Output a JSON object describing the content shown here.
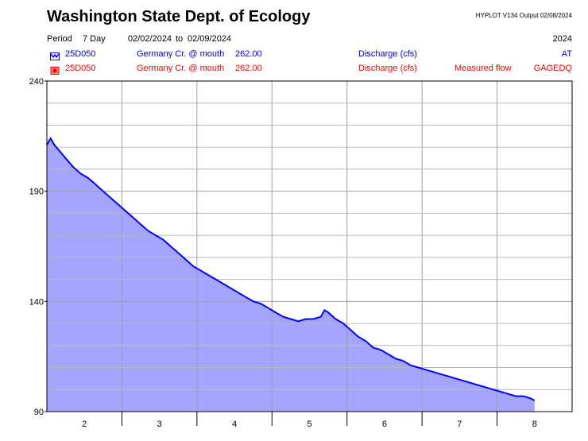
{
  "header": {
    "title": "Washington State Dept. of Ecology",
    "program": "HYPLOT V134",
    "output_label": "Output 02/08/2024",
    "period_label": "Period",
    "period_value": "7 Day",
    "date_from": "02/02/2024",
    "to_label": "to",
    "date_to": "02/09/2024",
    "year": "2024"
  },
  "series_rows": [
    {
      "icon": "hydrograph-icon",
      "station": "25D050",
      "site": "Germany Cr. @ mouth",
      "value": "262.00",
      "param": "Discharge (cfs)",
      "extra": "",
      "code": "AT",
      "color": "#0000ff"
    },
    {
      "icon": "measured-flow-icon",
      "station": "25D050",
      "site": "Germany Cr. @ mouth",
      "value": "262.00",
      "param": "Discharge (cfs)",
      "extra": "Measured flow",
      "code": "GAGEDQ",
      "color": "#ff0000"
    }
  ],
  "chart_data": {
    "type": "area",
    "title": "",
    "xlabel": "",
    "ylabel": "",
    "xlim": [
      1.5,
      8.5
    ],
    "ylim": [
      90,
      240
    ],
    "yticks": [
      90,
      140,
      190,
      240
    ],
    "xticks": [
      2,
      3,
      4,
      5,
      6,
      7,
      8
    ],
    "grid": true,
    "line_color": "#0000ff",
    "fill_color": "#a5a5ff",
    "series": [
      {
        "x": [
          1.5,
          1.55,
          1.6,
          1.65,
          1.75,
          1.85,
          1.95,
          2.05,
          2.15,
          2.25,
          2.35,
          2.45,
          2.55,
          2.65,
          2.75,
          2.85,
          2.95,
          3.05,
          3.15,
          3.25,
          3.35,
          3.45,
          3.55,
          3.65,
          3.75,
          3.85,
          3.95,
          4.05,
          4.15,
          4.25,
          4.35,
          4.45,
          4.55,
          4.65,
          4.75,
          4.85,
          4.95,
          5.05,
          5.15,
          5.2,
          5.25,
          5.35,
          5.45,
          5.55,
          5.65,
          5.75,
          5.85,
          5.95,
          6.05,
          6.15,
          6.25,
          6.35,
          6.45,
          6.55,
          6.65,
          6.75,
          6.85,
          6.95,
          7.05,
          7.15,
          7.25,
          7.35,
          7.45,
          7.55,
          7.65,
          7.75,
          7.85,
          7.95,
          8.0
        ],
        "y": [
          211,
          214,
          211,
          209,
          205,
          201,
          198,
          196,
          193,
          190,
          187,
          184,
          181,
          178,
          175,
          172,
          170,
          168,
          165,
          162,
          159,
          156,
          154,
          152,
          150,
          148,
          146,
          144,
          142,
          140,
          139,
          137,
          135,
          133,
          132,
          131,
          132,
          132,
          133,
          136,
          135,
          132,
          130,
          127,
          124,
          122,
          119,
          118,
          116,
          114,
          113,
          111,
          110,
          109,
          108,
          107,
          106,
          105,
          104,
          103,
          102,
          101,
          100,
          99,
          98,
          97,
          97,
          96,
          95
        ]
      }
    ]
  }
}
